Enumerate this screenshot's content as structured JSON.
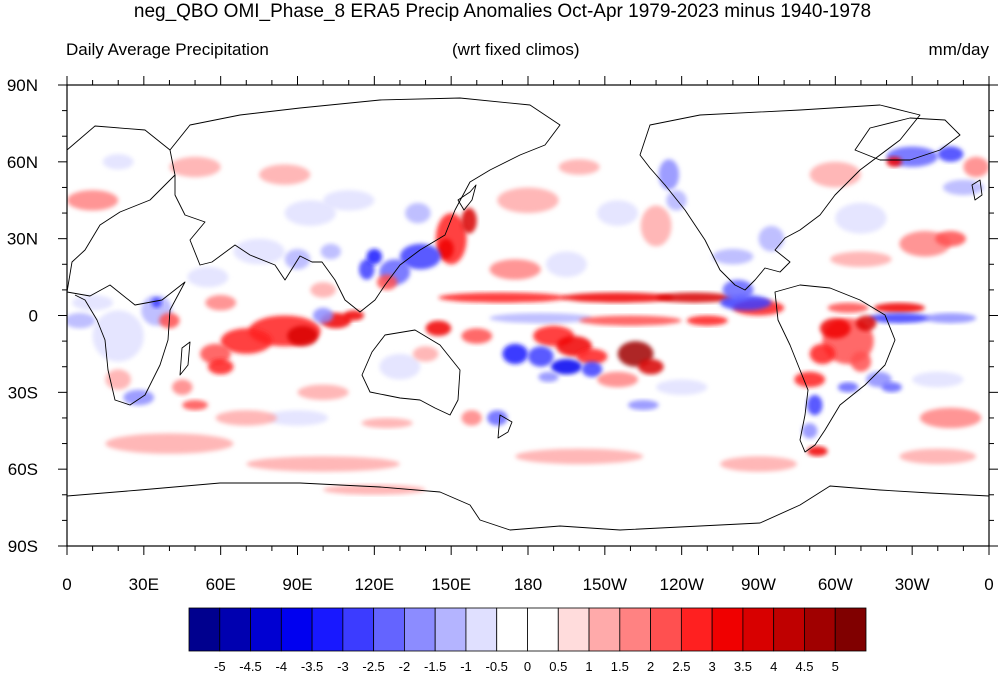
{
  "title": "neg_QBO OMI_Phase_8 ERA5 Precip Anomalies Oct-Apr 1979-2023 minus 1940-1978",
  "subtitle_left": "Daily Average Precipitation",
  "subtitle_center": "(wrt fixed climos)",
  "subtitle_right": "mm/day",
  "map": {
    "projection": "cylindrical-equidistant",
    "lon_range": [
      0,
      360
    ],
    "lat_range": [
      -90,
      90
    ],
    "x_ticks": [
      {
        "lon": 0,
        "label": "0"
      },
      {
        "lon": 30,
        "label": "30E"
      },
      {
        "lon": 60,
        "label": "60E"
      },
      {
        "lon": 90,
        "label": "90E"
      },
      {
        "lon": 120,
        "label": "120E"
      },
      {
        "lon": 150,
        "label": "150E"
      },
      {
        "lon": 180,
        "label": "180"
      },
      {
        "lon": 210,
        "label": "150W"
      },
      {
        "lon": 240,
        "label": "120W"
      },
      {
        "lon": 270,
        "label": "90W"
      },
      {
        "lon": 300,
        "label": "60W"
      },
      {
        "lon": 330,
        "label": "30W"
      },
      {
        "lon": 360,
        "label": "0"
      }
    ],
    "y_ticks": [
      {
        "lat": 90,
        "label": "90N"
      },
      {
        "lat": 60,
        "label": "60N"
      },
      {
        "lat": 30,
        "label": "30N"
      },
      {
        "lat": 0,
        "label": "0"
      },
      {
        "lat": -30,
        "label": "30S"
      },
      {
        "lat": -60,
        "label": "60S"
      },
      {
        "lat": -90,
        "label": "90S"
      }
    ],
    "anomalies": [
      {
        "lon": 150,
        "lat": 30,
        "rlon": 6,
        "rlat": 10,
        "value": 2.5
      },
      {
        "lon": 157,
        "lat": 37,
        "rlon": 3,
        "rlat": 5,
        "value": 3.5
      },
      {
        "lon": 148,
        "lat": 26,
        "rlon": 3,
        "rlat": 4,
        "value": 3
      },
      {
        "lon": 138,
        "lat": 23,
        "rlon": 8,
        "rlat": 5,
        "value": -3
      },
      {
        "lon": 128,
        "lat": 17,
        "rlon": 6,
        "rlat": 5,
        "value": -2.5
      },
      {
        "lon": 117,
        "lat": 18,
        "rlon": 3,
        "rlat": 4,
        "value": -3
      },
      {
        "lon": 120,
        "lat": 23,
        "rlon": 3,
        "rlat": 3,
        "value": -3.5
      },
      {
        "lon": 125,
        "lat": 13,
        "rlon": 4,
        "rlat": 3,
        "value": 2
      },
      {
        "lon": 170,
        "lat": 7,
        "rlon": 25,
        "rlat": 2,
        "value": 2.5
      },
      {
        "lon": 215,
        "lat": 7,
        "rlon": 22,
        "rlat": 2,
        "value": 3
      },
      {
        "lon": 245,
        "lat": 7,
        "rlon": 15,
        "rlat": 2,
        "value": 3.5
      },
      {
        "lon": 270,
        "lat": 3,
        "rlon": 10,
        "rlat": 3,
        "value": 2.5
      },
      {
        "lon": 305,
        "lat": 3,
        "rlon": 8,
        "rlat": 2,
        "value": 2
      },
      {
        "lon": 325,
        "lat": 3,
        "rlon": 10,
        "rlat": 2,
        "value": 3
      },
      {
        "lon": 265,
        "lat": 5,
        "rlon": 10,
        "rlat": 3,
        "value": -3
      },
      {
        "lon": 262,
        "lat": 10,
        "rlon": 6,
        "rlat": 4,
        "value": -2.5
      },
      {
        "lon": 325,
        "lat": -1,
        "rlon": 12,
        "rlat": 2,
        "value": -3
      },
      {
        "lon": 345,
        "lat": -1,
        "rlon": 10,
        "rlat": 2,
        "value": -2
      },
      {
        "lon": 185,
        "lat": -1,
        "rlon": 20,
        "rlat": 2,
        "value": -1.5
      },
      {
        "lon": 220,
        "lat": -2,
        "rlon": 20,
        "rlat": 2,
        "value": 2
      },
      {
        "lon": 250,
        "lat": -2,
        "rlon": 8,
        "rlat": 2,
        "value": 2.5
      },
      {
        "lon": 85,
        "lat": -6,
        "rlon": 14,
        "rlat": 6,
        "value": 2.5
      },
      {
        "lon": 70,
        "lat": -10,
        "rlon": 10,
        "rlat": 5,
        "value": 2.5
      },
      {
        "lon": 92,
        "lat": -8,
        "rlon": 6,
        "rlat": 4,
        "value": 3.5
      },
      {
        "lon": 105,
        "lat": -2,
        "rlon": 6,
        "rlat": 3,
        "value": 3
      },
      {
        "lon": 112,
        "lat": 0,
        "rlon": 4,
        "rlat": 2,
        "value": 3
      },
      {
        "lon": 58,
        "lat": -15,
        "rlon": 6,
        "rlat": 4,
        "value": 2
      },
      {
        "lon": 145,
        "lat": -5,
        "rlon": 5,
        "rlat": 3,
        "value": 3
      },
      {
        "lon": 160,
        "lat": -8,
        "rlon": 6,
        "rlat": 3,
        "value": 2
      },
      {
        "lon": 190,
        "lat": -8,
        "rlon": 8,
        "rlat": 4,
        "value": 2.5
      },
      {
        "lon": 198,
        "lat": -12,
        "rlon": 7,
        "rlat": 4,
        "value": 3
      },
      {
        "lon": 205,
        "lat": -16,
        "rlon": 6,
        "rlat": 3,
        "value": 2.5
      },
      {
        "lon": 222,
        "lat": -15,
        "rlon": 7,
        "rlat": 5,
        "value": 4.5
      },
      {
        "lon": 228,
        "lat": -20,
        "rlon": 5,
        "rlat": 3,
        "value": 3.5
      },
      {
        "lon": 175,
        "lat": -15,
        "rlon": 5,
        "rlat": 4,
        "value": -3.5
      },
      {
        "lon": 185,
        "lat": -16,
        "rlon": 5,
        "rlat": 4,
        "value": -3
      },
      {
        "lon": 195,
        "lat": -20,
        "rlon": 6,
        "rlat": 3,
        "value": -4
      },
      {
        "lon": 205,
        "lat": -21,
        "rlon": 4,
        "rlat": 3,
        "value": -3
      },
      {
        "lon": 188,
        "lat": -24,
        "rlon": 4,
        "rlat": 2,
        "value": -2
      },
      {
        "lon": 215,
        "lat": -25,
        "rlon": 8,
        "rlat": 3,
        "value": 1.5
      },
      {
        "lon": 225,
        "lat": -35,
        "rlon": 6,
        "rlat": 2,
        "value": -2
      },
      {
        "lon": 168,
        "lat": -40,
        "rlon": 4,
        "rlat": 3,
        "value": -2.5
      },
      {
        "lon": 158,
        "lat": -40,
        "rlon": 4,
        "rlat": 3,
        "value": 1.5
      },
      {
        "lon": 260,
        "lat": 23,
        "rlon": 8,
        "rlat": 3,
        "value": -1.5
      },
      {
        "lon": 275,
        "lat": 30,
        "rlon": 5,
        "rlat": 5,
        "value": -1.5
      },
      {
        "lon": 310,
        "lat": 38,
        "rlon": 10,
        "rlat": 6,
        "value": -1
      },
      {
        "lon": 310,
        "lat": 22,
        "rlon": 12,
        "rlat": 3,
        "value": 1
      },
      {
        "lon": 335,
        "lat": 28,
        "rlon": 10,
        "rlat": 5,
        "value": 1.5
      },
      {
        "lon": 345,
        "lat": 30,
        "rlon": 6,
        "rlat": 3,
        "value": 2
      },
      {
        "lon": 300,
        "lat": 55,
        "rlon": 10,
        "rlat": 5,
        "value": 1
      },
      {
        "lon": 330,
        "lat": 62,
        "rlon": 10,
        "rlat": 4,
        "value": -2.5
      },
      {
        "lon": 345,
        "lat": 63,
        "rlon": 5,
        "rlat": 3,
        "value": -3
      },
      {
        "lon": 350,
        "lat": 50,
        "rlon": 8,
        "rlat": 3,
        "value": -1.5
      },
      {
        "lon": 323,
        "lat": 60,
        "rlon": 3,
        "rlat": 2,
        "value": 3
      },
      {
        "lon": 235,
        "lat": 55,
        "rlon": 4,
        "rlat": 6,
        "value": -2
      },
      {
        "lon": 238,
        "lat": 45,
        "rlon": 4,
        "rlat": 4,
        "value": -1.5
      },
      {
        "lon": 200,
        "lat": 58,
        "rlon": 8,
        "rlat": 3,
        "value": 1
      },
      {
        "lon": 305,
        "lat": -10,
        "rlon": 10,
        "rlat": 9,
        "value": 2
      },
      {
        "lon": 300,
        "lat": -5,
        "rlon": 6,
        "rlat": 4,
        "value": 3
      },
      {
        "lon": 312,
        "lat": -3,
        "rlon": 4,
        "rlat": 3,
        "value": 3.5
      },
      {
        "lon": 295,
        "lat": -15,
        "rlon": 5,
        "rlat": 4,
        "value": 2.5
      },
      {
        "lon": 310,
        "lat": -18,
        "rlon": 4,
        "rlat": 4,
        "value": 2
      },
      {
        "lon": 290,
        "lat": -25,
        "rlon": 6,
        "rlat": 3,
        "value": 2.5
      },
      {
        "lon": 305,
        "lat": -28,
        "rlon": 4,
        "rlat": 2,
        "value": -2.5
      },
      {
        "lon": 317,
        "lat": -25,
        "rlon": 5,
        "rlat": 3,
        "value": -2
      },
      {
        "lon": 322,
        "lat": -28,
        "rlon": 4,
        "rlat": 2,
        "value": -2.5
      },
      {
        "lon": 292,
        "lat": -35,
        "rlon": 3,
        "rlat": 4,
        "value": -3
      },
      {
        "lon": 290,
        "lat": -45,
        "rlon": 3,
        "rlat": 3,
        "value": -2
      },
      {
        "lon": 293,
        "lat": -53,
        "rlon": 4,
        "rlat": 2,
        "value": 3
      },
      {
        "lon": 340,
        "lat": -25,
        "rlon": 10,
        "rlat": 3,
        "value": -1
      },
      {
        "lon": 345,
        "lat": -40,
        "rlon": 12,
        "rlat": 4,
        "value": 1.5
      },
      {
        "lon": 240,
        "lat": -28,
        "rlon": 10,
        "rlat": 3,
        "value": -1
      },
      {
        "lon": 20,
        "lat": -8,
        "rlon": 10,
        "rlat": 10,
        "value": -1
      },
      {
        "lon": 35,
        "lat": 2,
        "rlon": 6,
        "rlat": 6,
        "value": -1.5
      },
      {
        "lon": 35,
        "lat": 5,
        "rlon": 2,
        "rlat": 2,
        "value": -3
      },
      {
        "lon": 40,
        "lat": -2,
        "rlon": 4,
        "rlat": 3,
        "value": 2
      },
      {
        "lon": 20,
        "lat": -25,
        "rlon": 5,
        "rlat": 4,
        "value": 1
      },
      {
        "lon": 28,
        "lat": -32,
        "rlon": 6,
        "rlat": 3,
        "value": -2
      },
      {
        "lon": 45,
        "lat": -28,
        "rlon": 4,
        "rlat": 3,
        "value": 1.5
      },
      {
        "lon": 10,
        "lat": 5,
        "rlon": 8,
        "rlat": 3,
        "value": -1
      },
      {
        "lon": 5,
        "lat": -2,
        "rlon": 6,
        "rlat": 3,
        "value": -1.5
      },
      {
        "lon": 55,
        "lat": 15,
        "rlon": 8,
        "rlat": 4,
        "value": -1
      },
      {
        "lon": 60,
        "lat": 5,
        "rlon": 6,
        "rlat": 3,
        "value": 1.5
      },
      {
        "lon": 60,
        "lat": -20,
        "rlon": 5,
        "rlat": 3,
        "value": 2.5
      },
      {
        "lon": 50,
        "lat": -35,
        "rlon": 5,
        "rlat": 2,
        "value": 2
      },
      {
        "lon": 75,
        "lat": 25,
        "rlon": 10,
        "rlat": 5,
        "value": -1
      },
      {
        "lon": 90,
        "lat": 22,
        "rlon": 5,
        "rlat": 4,
        "value": -1.5
      },
      {
        "lon": 103,
        "lat": 25,
        "rlon": 4,
        "rlat": 3,
        "value": -1.5
      },
      {
        "lon": 95,
        "lat": 40,
        "rlon": 10,
        "rlat": 5,
        "value": -1
      },
      {
        "lon": 110,
        "lat": 45,
        "rlon": 10,
        "rlat": 4,
        "value": -1
      },
      {
        "lon": 85,
        "lat": 55,
        "rlon": 10,
        "rlat": 4,
        "value": 1
      },
      {
        "lon": 50,
        "lat": 58,
        "rlon": 10,
        "rlat": 4,
        "value": 1
      },
      {
        "lon": 10,
        "lat": 45,
        "rlon": 10,
        "rlat": 4,
        "value": 1.5
      },
      {
        "lon": 20,
        "lat": 60,
        "rlon": 6,
        "rlat": 3,
        "value": -1
      },
      {
        "lon": 355,
        "lat": 58,
        "rlon": 5,
        "rlat": 4,
        "value": 1.5
      },
      {
        "lon": 137,
        "lat": 40,
        "rlon": 5,
        "rlat": 4,
        "value": -1.5
      },
      {
        "lon": 130,
        "lat": -20,
        "rlon": 8,
        "rlat": 5,
        "value": -1
      },
      {
        "lon": 140,
        "lat": -15,
        "rlon": 5,
        "rlat": 3,
        "value": 1
      },
      {
        "lon": 100,
        "lat": -30,
        "rlon": 10,
        "rlat": 3,
        "value": 1
      },
      {
        "lon": 90,
        "lat": -40,
        "rlon": 12,
        "rlat": 3,
        "value": -1
      },
      {
        "lon": 125,
        "lat": -42,
        "rlon": 10,
        "rlat": 2,
        "value": 1
      },
      {
        "lon": 70,
        "lat": -40,
        "rlon": 12,
        "rlat": 3,
        "value": 1
      },
      {
        "lon": 40,
        "lat": -50,
        "rlon": 25,
        "rlat": 4,
        "value": 1
      },
      {
        "lon": 100,
        "lat": -58,
        "rlon": 30,
        "rlat": 3,
        "value": 1
      },
      {
        "lon": 200,
        "lat": -55,
        "rlon": 25,
        "rlat": 3,
        "value": 1
      },
      {
        "lon": 270,
        "lat": -58,
        "rlon": 15,
        "rlat": 3,
        "value": 1
      },
      {
        "lon": 340,
        "lat": -55,
        "rlon": 15,
        "rlat": 3,
        "value": 1
      },
      {
        "lon": 120,
        "lat": -68,
        "rlon": 20,
        "rlat": 2,
        "value": 1
      },
      {
        "lon": 180,
        "lat": 45,
        "rlon": 12,
        "rlat": 5,
        "value": 1
      },
      {
        "lon": 175,
        "lat": 18,
        "rlon": 10,
        "rlat": 4,
        "value": 1.5
      },
      {
        "lon": 195,
        "lat": 20,
        "rlon": 8,
        "rlat": 5,
        "value": -1
      },
      {
        "lon": 230,
        "lat": 35,
        "rlon": 6,
        "rlat": 8,
        "value": 1
      },
      {
        "lon": 215,
        "lat": 40,
        "rlon": 8,
        "rlat": 5,
        "value": -1
      },
      {
        "lon": 100,
        "lat": 10,
        "rlon": 5,
        "rlat": 3,
        "value": 1
      },
      {
        "lon": 100,
        "lat": 0,
        "rlon": 4,
        "rlat": 3,
        "value": -2
      }
    ]
  },
  "colorbar": {
    "colors": [
      "#00008e",
      "#0000b0",
      "#0000d2",
      "#0000f0",
      "#1818ff",
      "#3c3cff",
      "#6464ff",
      "#8c8cff",
      "#b4b4ff",
      "#e0e0ff",
      "#ffffff",
      "#ffffff",
      "#ffdcdc",
      "#ffaaaa",
      "#ff8282",
      "#ff5050",
      "#ff2020",
      "#f00000",
      "#d80000",
      "#bf0000",
      "#a00000",
      "#800000"
    ],
    "labels": [
      "-5",
      "-4.5",
      "-4",
      "-3.5",
      "-3",
      "-2.5",
      "-2",
      "-1.5",
      "-1",
      "-0.5",
      "0",
      "0.5",
      "1",
      "1.5",
      "2",
      "2.5",
      "3",
      "3.5",
      "4",
      "4.5",
      "5"
    ]
  }
}
